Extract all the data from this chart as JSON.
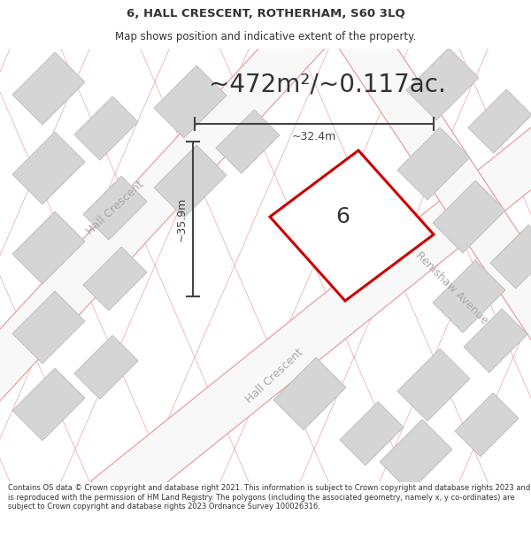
{
  "title_line1": "6, HALL CRESCENT, ROTHERHAM, S60 3LQ",
  "title_line2": "Map shows position and indicative extent of the property.",
  "area_text": "~472m²/~0.117ac.",
  "label_number": "6",
  "dim_vertical": "~35.9m",
  "dim_horizontal": "~32.4m",
  "street_label1": "Hall Crescent",
  "street_label2": "Hall Crescent",
  "street_label3": "Renishaw Avenue",
  "footer_text": "Contains OS data © Crown copyright and database right 2021. This information is subject to Crown copyright and database rights 2023 and is reproduced with the permission of HM Land Registry. The polygons (including the associated geometry, namely x, y co-ordinates) are subject to Crown copyright and database rights 2023 Ordnance Survey 100026316.",
  "map_bg": "#f2f0f0",
  "plot_color": "#cc0000",
  "road_line_color": "#e8a0a0",
  "block_fill": "#d5d5d5",
  "block_edge": "#bbbbbb",
  "dim_color": "#444444",
  "text_color": "#333333",
  "street_color": "#aaaaaa",
  "fig_width": 6.0,
  "fig_height": 6.25,
  "title_fontsize": 9.5,
  "subtitle_fontsize": 8.5,
  "area_fontsize": 20,
  "label_fontsize": 18,
  "dim_fontsize": 9,
  "street_fontsize": 9,
  "footer_fontsize": 6.0
}
